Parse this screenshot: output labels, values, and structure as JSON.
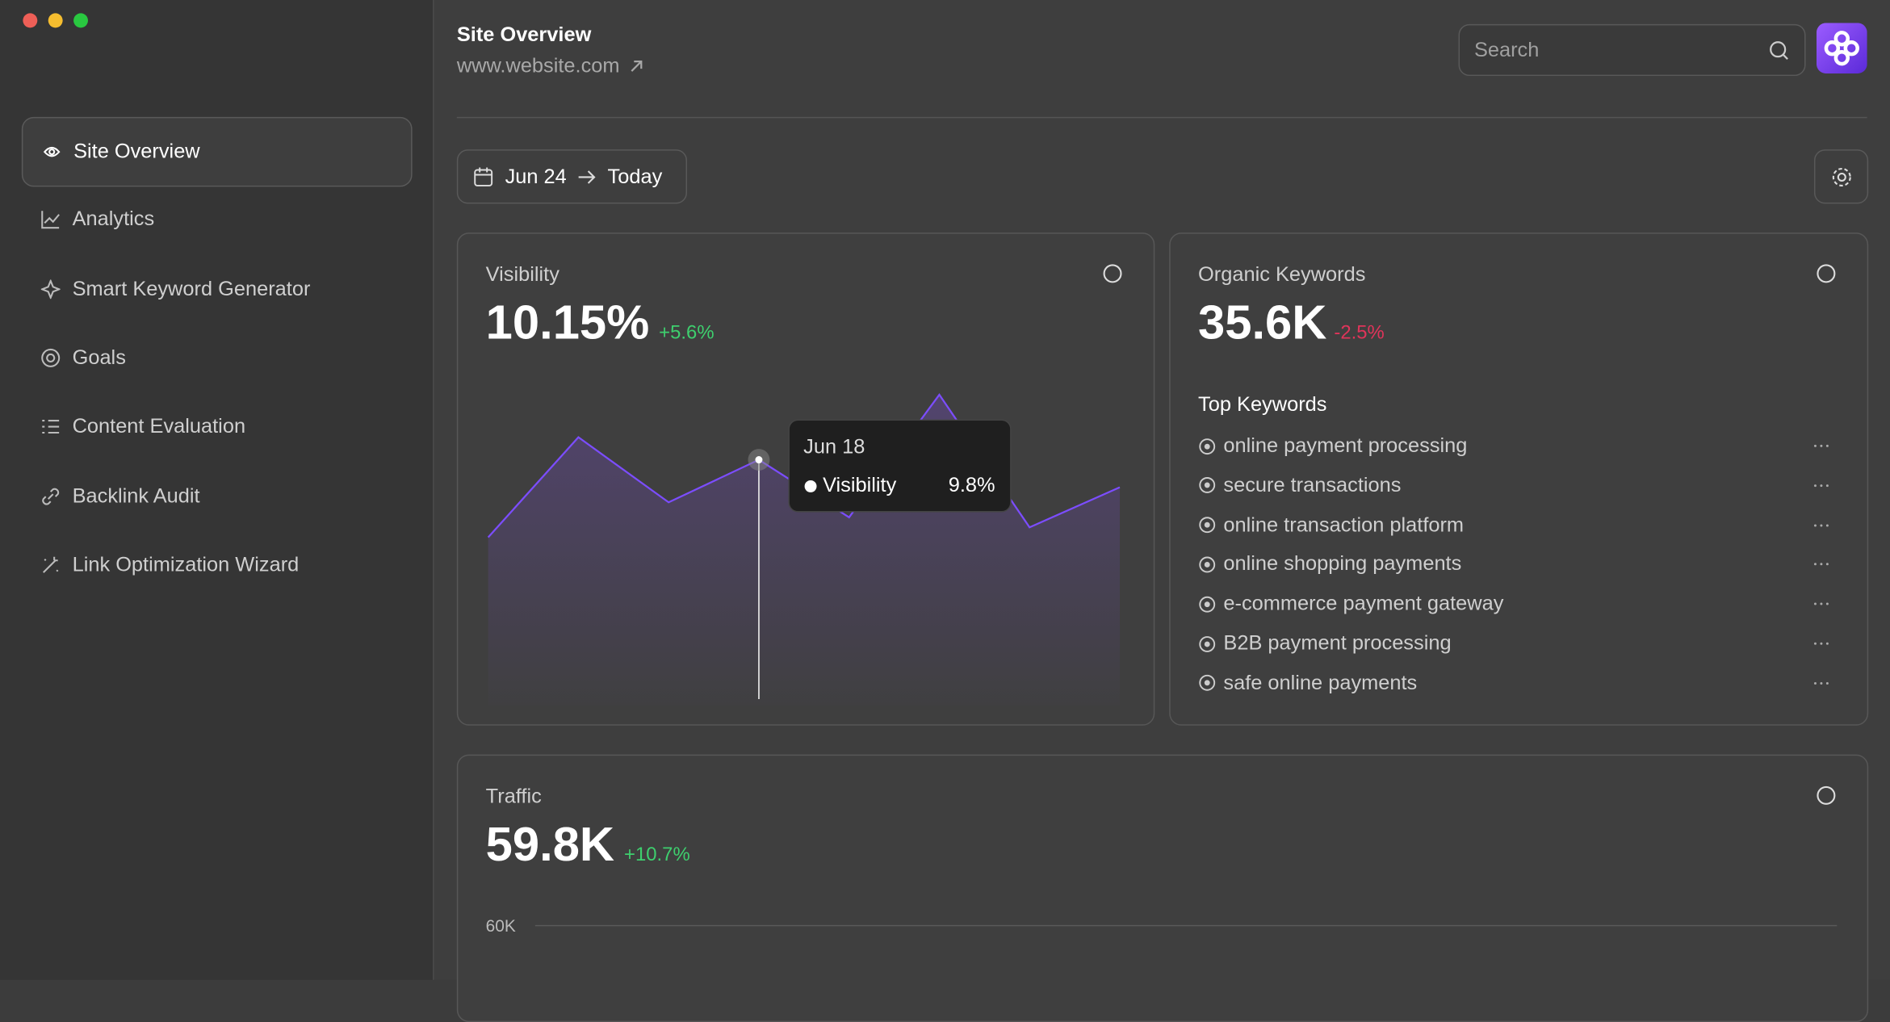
{
  "sidebar": {
    "nav": [
      "Site Overview",
      "Analytics",
      "Smart Keyword Generator",
      "Goals",
      "Content Evaluation",
      "Backlink Audit",
      "Link Optimization Wizard"
    ]
  },
  "header": {
    "title": "Site Overview",
    "url": "www.website.com",
    "search_placeholder": "Search"
  },
  "date_range": {
    "from": "Jun 24",
    "to": "Today"
  },
  "visibility": {
    "title": "Visibility",
    "value": "10.15%",
    "change": "+5.6%"
  },
  "keywords": {
    "title": "Organic Keywords",
    "value": "35.6K",
    "change": "-2.5%",
    "list_title": "Top Keywords",
    "items": [
      "online payment processing",
      "secure transactions",
      "online transaction platform",
      "online shopping payments",
      "e-commerce payment gateway",
      "B2B payment processing",
      "safe online payments"
    ]
  },
  "traffic": {
    "title": "Traffic",
    "value": "59.8K",
    "change": "+10.7%"
  },
  "chart_data": [
    {
      "type": "area",
      "categories": [
        null,
        null,
        null,
        "Jun 18",
        null,
        null,
        null,
        null
      ],
      "series": [
        {
          "name": "Visibility",
          "color": "#7c4dff",
          "values": [
            6.7,
            10.7,
            8.1,
            9.8,
            7.5,
            12.4,
            7.1,
            8.7
          ],
          "value_labels": [
            null,
            null,
            null,
            "9.8%",
            null,
            null,
            null,
            null
          ]
        }
      ],
      "ylim": [
        0,
        13
      ]
    },
    {
      "type": "line",
      "ylim": [
        0,
        60000
      ],
      "yticks": [
        {
          "value": 60000,
          "label": "60K"
        }
      ],
      "grid": true
    }
  ]
}
